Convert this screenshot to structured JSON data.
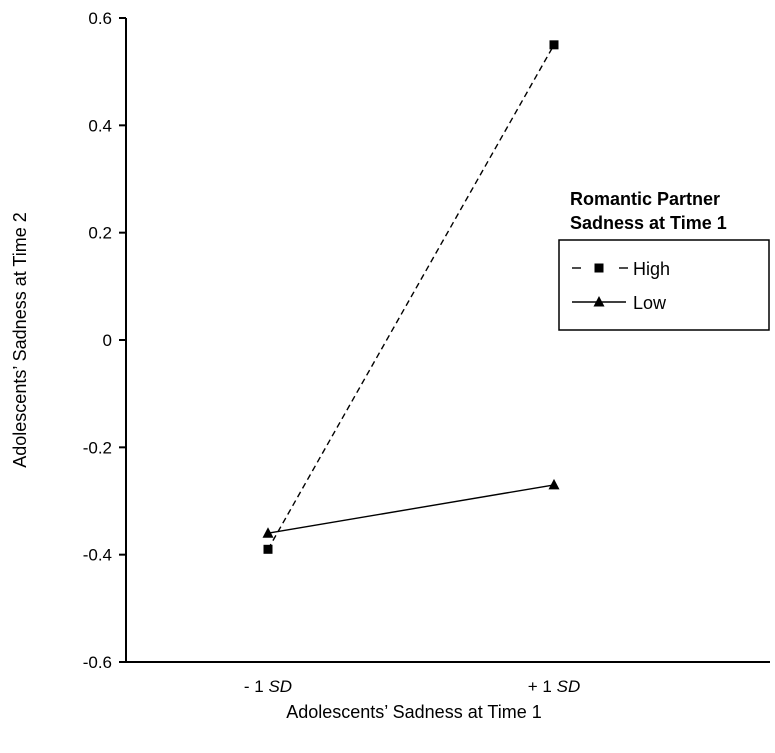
{
  "chart_data": {
    "type": "line",
    "title": "",
    "xlabel": "Adolescents’ Sadness at Time 1",
    "ylabel": "Adolescents’ Sadness at Time 2",
    "categories": [
      {
        "prefix": "- 1 ",
        "emph": "SD"
      },
      {
        "prefix": "+ 1 ",
        "emph": "SD"
      }
    ],
    "ylim": [
      -0.6,
      0.6
    ],
    "yticks": [
      "0.6",
      "0.4",
      "0.2",
      "0",
      "-0.2",
      "-0.4",
      "-0.6"
    ],
    "yvalues": [
      0.6,
      0.4,
      0.2,
      0,
      -0.2,
      -0.4,
      -0.6
    ],
    "grid": false,
    "legend": {
      "title_line1": "Romantic Partner",
      "title_line2": "Sadness at Time 1",
      "placement": "right"
    },
    "series": [
      {
        "name": "High",
        "marker": "square",
        "dash": "dashed",
        "values": [
          -0.39,
          0.55
        ]
      },
      {
        "name": "Low",
        "marker": "triangle",
        "dash": "solid",
        "values": [
          -0.36,
          -0.27
        ]
      }
    ]
  }
}
